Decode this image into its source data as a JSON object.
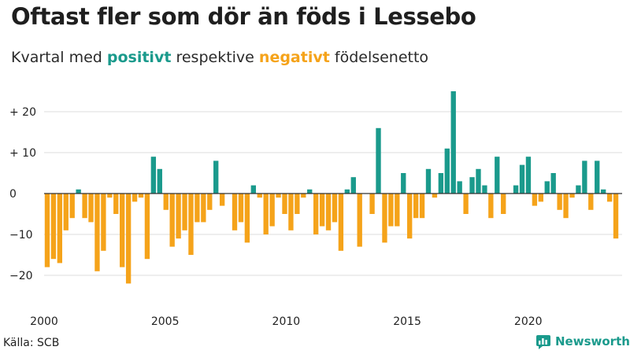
{
  "header": {
    "title": "Oftast fler som dör än föds i Lessebo",
    "subtitle_prefix": "Kvartal med",
    "subtitle_positive": "positivt",
    "subtitle_middle": "respektive",
    "subtitle_negative": "negativt",
    "subtitle_suffix": "födelsenetto"
  },
  "footer": {
    "source": "Källa: SCB",
    "brand": "Newsworthy"
  },
  "colors": {
    "positive": "#1a9a8c",
    "negative": "#f5a31a",
    "grid": "#dddddd",
    "zero_line": "#333333"
  },
  "chart_data": {
    "type": "bar",
    "title": "Oftast fler som dör än föds i Lessebo",
    "subtitle": "Kvartal med positivt respektive negativt födelsenetto",
    "xlabel": "",
    "ylabel": "",
    "grid": true,
    "legend": "none",
    "x_start_year": 2000,
    "periods_per_year": 4,
    "xlim": [
      2000,
      2023.75
    ],
    "x_ticks": [
      {
        "value": 2000,
        "label": "2000"
      },
      {
        "value": 2005,
        "label": "2005"
      },
      {
        "value": 2010,
        "label": "2010"
      },
      {
        "value": 2015,
        "label": "2015"
      },
      {
        "value": 2020,
        "label": "2020"
      }
    ],
    "ylim": [
      -24,
      26
    ],
    "y_ticks": [
      {
        "value": 20,
        "label": "+ 20"
      },
      {
        "value": 10,
        "label": "+ 10"
      },
      {
        "value": 0,
        "label": "0"
      },
      {
        "value": -10,
        "label": "−10"
      },
      {
        "value": -20,
        "label": "−20"
      }
    ],
    "values": [
      -18,
      -16,
      -17,
      -9,
      -6,
      1,
      -6,
      -7,
      -19,
      -14,
      -1,
      -5,
      -18,
      -22,
      -2,
      -1,
      -16,
      9,
      6,
      -4,
      -13,
      -11,
      -9,
      -15,
      -7,
      -7,
      -4,
      8,
      -3,
      0,
      -9,
      -7,
      -12,
      2,
      -1,
      -10,
      -8,
      -1,
      -5,
      -9,
      -5,
      -1,
      1,
      -10,
      -8,
      -9,
      -7,
      -14,
      1,
      4,
      -13,
      0,
      -5,
      16,
      -12,
      -8,
      -8,
      5,
      -11,
      -6,
      -6,
      6,
      -1,
      5,
      11,
      25,
      3,
      -5,
      4,
      6,
      2,
      -6,
      9,
      -5,
      0,
      2,
      7,
      9,
      -3,
      -2,
      3,
      5,
      -4,
      -6,
      -1,
      2,
      8,
      -4,
      8,
      1,
      -2,
      -11
    ]
  }
}
